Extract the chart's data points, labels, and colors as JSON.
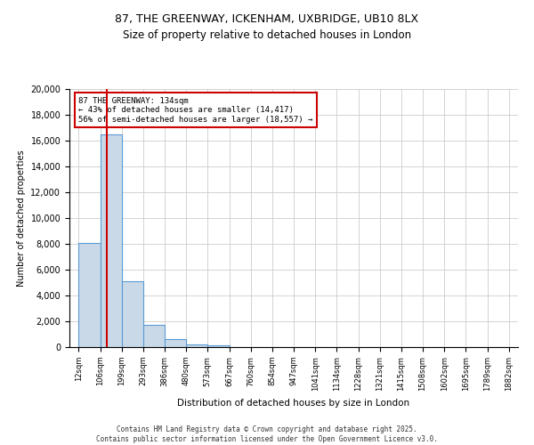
{
  "title_line1": "87, THE GREENWAY, ICKENHAM, UXBRIDGE, UB10 8LX",
  "title_line2": "Size of property relative to detached houses in London",
  "xlabel": "Distribution of detached houses by size in London",
  "ylabel": "Number of detached properties",
  "bar_edges": [
    12,
    106,
    199,
    293,
    386,
    480,
    573,
    667,
    760,
    854,
    947,
    1041,
    1134,
    1228,
    1321,
    1415,
    1508,
    1602,
    1695,
    1789,
    1882
  ],
  "bar_heights": [
    8100,
    16500,
    5100,
    1750,
    600,
    200,
    120,
    0,
    0,
    0,
    0,
    0,
    0,
    0,
    0,
    0,
    0,
    0,
    0,
    0
  ],
  "bar_color": "#c9d9e8",
  "bar_edge_color": "#5b9bd5",
  "grid_color": "#cccccc",
  "vline_x": 134,
  "vline_color": "#cc0000",
  "annotation_text": "87 THE GREENWAY: 134sqm\n← 43% of detached houses are smaller (14,417)\n56% of semi-detached houses are larger (18,557) →",
  "annotation_box_color": "#cc0000",
  "annotation_text_color": "#000000",
  "ylim": [
    0,
    20000
  ],
  "yticks": [
    0,
    2000,
    4000,
    6000,
    8000,
    10000,
    12000,
    14000,
    16000,
    18000,
    20000
  ],
  "footer_line1": "Contains HM Land Registry data © Crown copyright and database right 2025.",
  "footer_line2": "Contains public sector information licensed under the Open Government Licence v3.0.",
  "bg_color": "#ffffff"
}
